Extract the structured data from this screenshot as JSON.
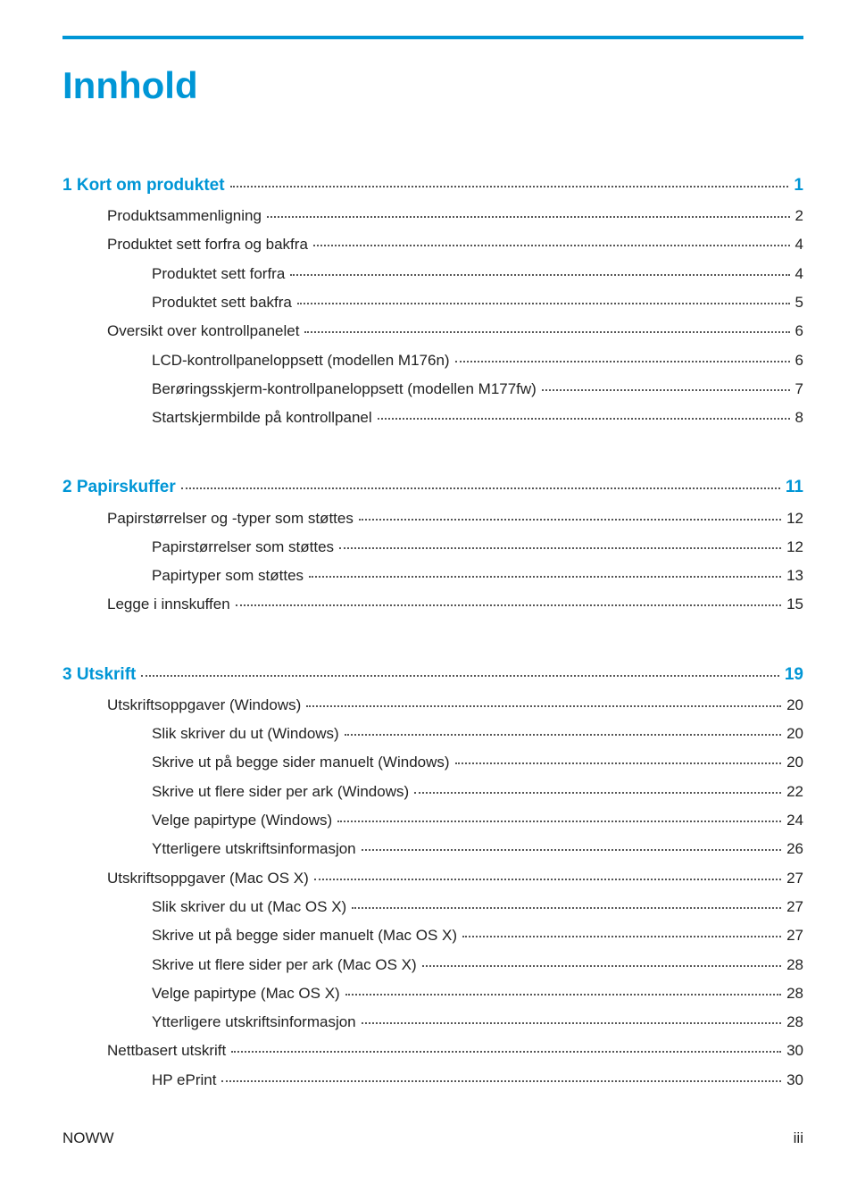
{
  "colors": {
    "accent": "#0096d6",
    "text": "#222222",
    "leader": "#555555"
  },
  "title": "Innhold",
  "groups": [
    [
      {
        "lvl": 0,
        "label": "1  Kort om produktet",
        "page": "1",
        "accent": true
      },
      {
        "lvl": 1,
        "label": "Produktsammenligning",
        "page": "2"
      },
      {
        "lvl": 1,
        "label": "Produktet sett forfra og bakfra",
        "page": "4"
      },
      {
        "lvl": 2,
        "label": "Produktet sett forfra",
        "page": "4"
      },
      {
        "lvl": 2,
        "label": "Produktet sett bakfra",
        "page": "5"
      },
      {
        "lvl": 1,
        "label": "Oversikt over kontrollpanelet",
        "page": "6"
      },
      {
        "lvl": 2,
        "label": "LCD-kontrollpaneloppsett (modellen M176n)",
        "page": "6"
      },
      {
        "lvl": 2,
        "label": "Berøringsskjerm-kontrollpaneloppsett (modellen M177fw)",
        "page": "7"
      },
      {
        "lvl": 2,
        "label": "Startskjermbilde på kontrollpanel",
        "page": "8"
      }
    ],
    [
      {
        "lvl": 0,
        "label": "2  Papirskuffer",
        "page": "11",
        "accent": true
      },
      {
        "lvl": 1,
        "label": "Papirstørrelser og -typer som støttes",
        "page": "12"
      },
      {
        "lvl": 2,
        "label": "Papirstørrelser som støttes",
        "page": "12"
      },
      {
        "lvl": 2,
        "label": "Papirtyper som støttes",
        "page": "13"
      },
      {
        "lvl": 1,
        "label": "Legge i innskuffen",
        "page": "15"
      }
    ],
    [
      {
        "lvl": 0,
        "label": "3  Utskrift",
        "page": "19",
        "accent": true
      },
      {
        "lvl": 1,
        "label": "Utskriftsoppgaver (Windows)",
        "page": "20"
      },
      {
        "lvl": 2,
        "label": "Slik skriver du ut (Windows)",
        "page": "20"
      },
      {
        "lvl": 2,
        "label": "Skrive ut på begge sider manuelt (Windows)",
        "page": "20"
      },
      {
        "lvl": 2,
        "label": "Skrive ut flere sider per ark (Windows)",
        "page": "22"
      },
      {
        "lvl": 2,
        "label": "Velge papirtype (Windows)",
        "page": "24"
      },
      {
        "lvl": 2,
        "label": "Ytterligere utskriftsinformasjon",
        "page": "26"
      },
      {
        "lvl": 1,
        "label": "Utskriftsoppgaver (Mac OS X)",
        "page": "27"
      },
      {
        "lvl": 2,
        "label": "Slik skriver du ut (Mac OS X)",
        "page": "27"
      },
      {
        "lvl": 2,
        "label": "Skrive ut på begge sider manuelt (Mac OS X)",
        "page": "27"
      },
      {
        "lvl": 2,
        "label": "Skrive ut flere sider per ark (Mac OS X)",
        "page": "28"
      },
      {
        "lvl": 2,
        "label": "Velge papirtype (Mac OS X)",
        "page": "28"
      },
      {
        "lvl": 2,
        "label": "Ytterligere utskriftsinformasjon",
        "page": "28"
      },
      {
        "lvl": 1,
        "label": "Nettbasert utskrift",
        "page": "30"
      },
      {
        "lvl": 2,
        "label": "HP ePrint",
        "page": "30"
      }
    ]
  ],
  "footer": {
    "left": "NOWW",
    "right": "iii"
  }
}
